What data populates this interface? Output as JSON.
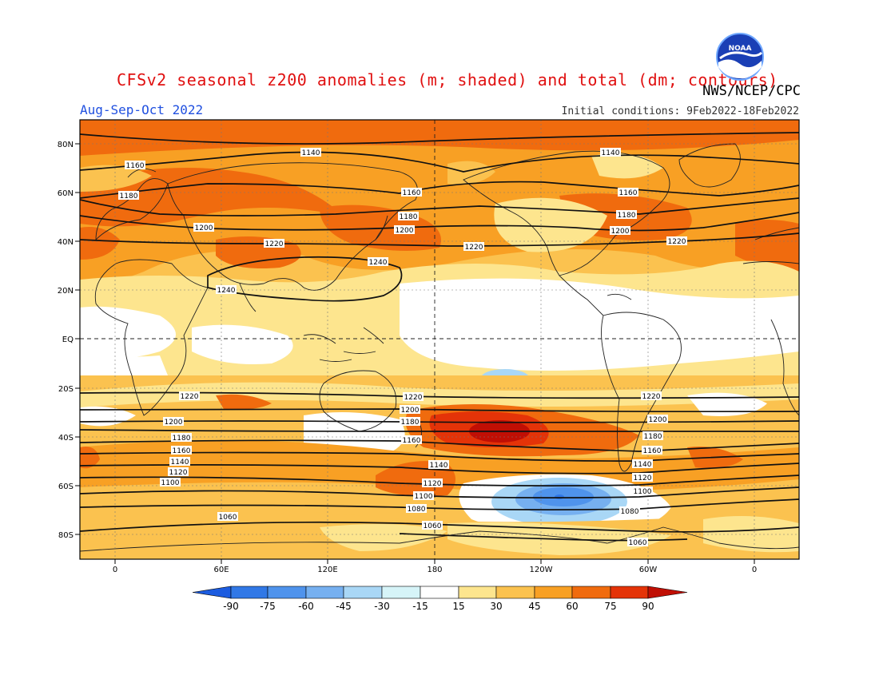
{
  "header": {
    "title": "CFSv2 seasonal z200 anomalies (m; shaded) and total (dm; contours)",
    "agency": "NWS/NCEP/CPC",
    "season": "Aug-Sep-Oct 2022",
    "initial_conditions": "Initial conditions: 9Feb2022-18Feb2022",
    "logo_text": "NOAA"
  },
  "map": {
    "lat_labels": [
      "80N",
      "60N",
      "40N",
      "20N",
      "EQ",
      "20S",
      "40S",
      "60S",
      "80S"
    ],
    "lon_labels": [
      "0",
      "60E",
      "120E",
      "180",
      "120W",
      "60W",
      "0"
    ],
    "contour_labels": [
      "1060",
      "1080",
      "1100",
      "1120",
      "1140",
      "1160",
      "1180",
      "1200",
      "1220",
      "1240"
    ]
  },
  "colorbar": {
    "ticks": [
      "-90",
      "-75",
      "-60",
      "-45",
      "-30",
      "-15",
      "15",
      "30",
      "45",
      "60",
      "75",
      "90"
    ],
    "colors": [
      "#1c5ce0",
      "#3178e6",
      "#4f93ec",
      "#76b0f0",
      "#a9d7f6",
      "#d6f4f8",
      "#ffffff",
      "#fde58e",
      "#fbc24f",
      "#f8a024",
      "#f06b0e",
      "#e43308",
      "#c00f04"
    ]
  }
}
